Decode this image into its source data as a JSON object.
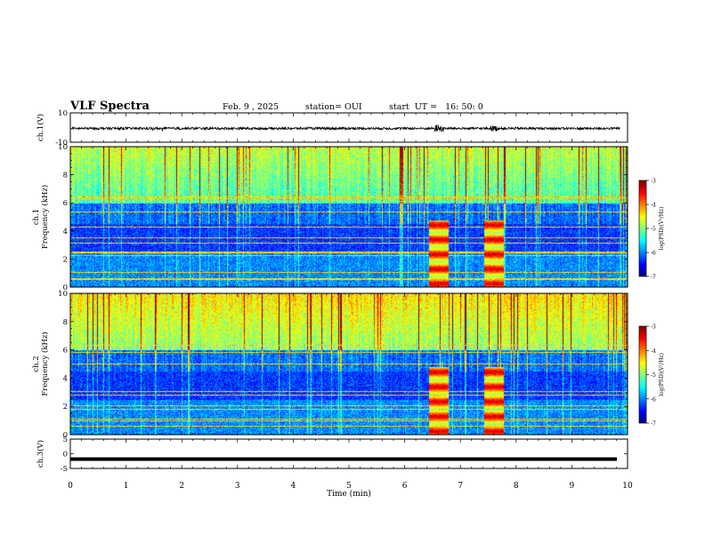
{
  "header": {
    "title": "VLF Spectra",
    "date": "Feb. 9 , 2025",
    "station": "station= OUI",
    "start": "start  UT =   16: 50: 0"
  },
  "chart_data": [
    {
      "type": "line",
      "ylabel": "ch.1(V)",
      "ylim": [
        -10,
        10
      ],
      "yticks": [
        "10",
        "-10"
      ],
      "xlim": [
        0,
        10
      ],
      "series": [
        {
          "description": "noisy waveform centred near 0 V, amplitude about ±1 V, bursts near 6.6 min and 7.6 min",
          "color": "#000000"
        }
      ]
    },
    {
      "type": "heatmap",
      "ylabel": "ch.1\nFrequency (kHz)",
      "ylim": [
        0,
        10
      ],
      "yticks": [
        "0",
        "2",
        "4",
        "6",
        "8",
        "10"
      ],
      "xlim": [
        0,
        10
      ],
      "colorbar": {
        "label": "log(PSD)(V²/Hz)",
        "range": [
          -7,
          -3
        ],
        "ticks": [
          "-3",
          "-4",
          "-5",
          "-6",
          "-7"
        ]
      },
      "bursts_min": [
        6.6,
        7.6
      ]
    },
    {
      "type": "heatmap",
      "ylabel": "ch.2\nFrequency (kHz)",
      "ylim": [
        0,
        10
      ],
      "yticks": [
        "0",
        "2",
        "4",
        "6",
        "8",
        "10"
      ],
      "xlim": [
        0,
        10
      ],
      "colorbar": {
        "label": "log(PSD)(V²/Hz)",
        "range": [
          -7,
          -3
        ],
        "ticks": [
          "-3",
          "-4",
          "-5",
          "-6",
          "-7"
        ]
      },
      "bursts_min": [
        6.6,
        7.6
      ]
    },
    {
      "type": "line",
      "ylabel": "ch.3(V)",
      "ylim": [
        -5,
        5
      ],
      "yticks": [
        "5",
        "0",
        "-5"
      ],
      "xlim": [
        0,
        10
      ],
      "series": [
        {
          "description": "constant level near -1.8 V",
          "value": -1.8,
          "color": "#000000"
        }
      ]
    }
  ],
  "x_axis": {
    "label": "Time  (min)",
    "ticks": [
      "0",
      "1",
      "2",
      "3",
      "4",
      "5",
      "6",
      "7",
      "8",
      "9",
      "10"
    ]
  }
}
